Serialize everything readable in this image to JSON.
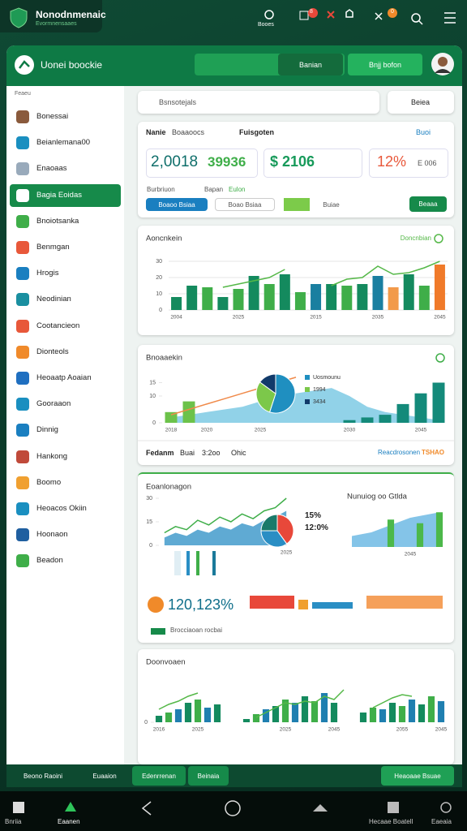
{
  "top_bar": {
    "title": "Nonodnmenaic",
    "subtitle": "Evormnensaaes",
    "icon_label": "Booes",
    "badge": "8",
    "badge_2": "0"
  },
  "toolbar": {
    "title": "Uonei boockie",
    "button_1": "Banian",
    "button_2": "Bnjj bofon"
  },
  "sidebar": {
    "heading": "Feaeu",
    "active": 3,
    "items": [
      "Bonessai",
      "Beianlemana00",
      "Enaoaas",
      "Bagia Eoidas",
      "Bnoiotsanka",
      "Benmgan",
      "Hrogis",
      "Neodinian",
      "Cootancieon",
      "Dionteols",
      "Heoaatp Aoaian",
      "Gooraaon",
      "Dinnig",
      "Hankong",
      "Boomo",
      "Heoacos Okiin",
      "Hoonaon",
      "Beadon"
    ]
  },
  "search": {
    "placeholder": "Bsnsotejals",
    "dropdown": "Beiea"
  },
  "summary": {
    "tabs": [
      "Nanie",
      "Boaaoocs",
      "Fuisgoten"
    ],
    "link": "Buoi",
    "stats": [
      "2,0018",
      "39936",
      "$ 2106",
      "12%",
      "E 006"
    ],
    "filters": [
      "Burbriuon",
      "Bapan",
      "Eulon"
    ],
    "buttons": [
      "Boaoo Bsiaa",
      "Boao Bsiaa",
      "Buiae",
      "Beaaa"
    ]
  },
  "chart_data": [
    {
      "type": "bar",
      "title": "Aoncnkein",
      "ylim": [
        0,
        35
      ],
      "yticks": [
        0,
        10,
        20,
        30
      ],
      "grid": true,
      "categories": [
        "2004",
        null,
        null,
        null,
        "2025",
        null,
        null,
        null,
        null,
        "2015",
        null,
        null,
        null,
        "2035",
        null,
        null,
        null,
        "2045"
      ],
      "series": [
        {
          "type": "bar",
          "colors": [
            "#148a5e",
            "#148a5e",
            "#3fae49",
            "#148a5e",
            "#3fae49",
            "#148a5e",
            "#3fae49",
            "#148a5e",
            "#3fae49",
            "#1a7fa0",
            "#148a5e",
            "#3fae49",
            "#148a5e",
            "#1a7fa0",
            "#f29a4a",
            "#148a5e",
            "#3fae49",
            "#f07a2a"
          ],
          "values": [
            8,
            15,
            14,
            8,
            13,
            21,
            16,
            22,
            11,
            16,
            16,
            15,
            16,
            21,
            14,
            22,
            15,
            28
          ]
        },
        {
          "type": "line",
          "name": "Doncnbian",
          "color": "#55b848",
          "values": [
            null,
            null,
            null,
            14,
            16,
            18,
            20,
            25,
            null,
            null,
            15,
            19,
            20,
            27,
            22,
            23,
            26,
            30
          ]
        }
      ]
    },
    {
      "type": "bar",
      "title": "Bnoaaekin",
      "ylim": [
        0,
        20
      ],
      "yticks": [
        0,
        10,
        15
      ],
      "grid": false,
      "categories": [
        "2018",
        null,
        "2020",
        null,
        null,
        "2025",
        null,
        null,
        null,
        null,
        "2030",
        null,
        null,
        null,
        "2045",
        null
      ],
      "series": [
        {
          "type": "area",
          "color": "#6cc3e0",
          "values": [
            2,
            3,
            4,
            5,
            6,
            8,
            9,
            11,
            12,
            13,
            10,
            6,
            4,
            3,
            2,
            1
          ]
        },
        {
          "type": "bar",
          "colors": [
            "#6cc24a",
            "#6cc24a",
            "#148a7a",
            "#148a7a",
            "#148a7a",
            "#148a7a",
            "#148a7a",
            "#148a7a",
            "#148a7a",
            "#148a7a",
            "#148a7a",
            "#148a7a",
            "#148a7a",
            "#148a7a",
            "#148a7a",
            "#148a7a"
          ],
          "values": [
            4,
            8,
            null,
            null,
            null,
            null,
            null,
            null,
            null,
            null,
            1,
            2,
            3,
            7,
            11,
            15
          ]
        },
        {
          "type": "line",
          "color": "#f08a4a",
          "values": [
            3,
            5,
            7,
            9,
            11,
            13,
            15,
            17,
            null,
            null,
            null,
            null,
            null,
            null,
            null,
            null
          ]
        }
      ]
    },
    {
      "type": "pie",
      "values": [
        55,
        30,
        15
      ],
      "colors": [
        "#1f8fc0",
        "#7cc84a",
        "#113a6a"
      ],
      "labels": [
        "Uosmounu",
        "1994",
        "3434"
      ]
    },
    {
      "type": "bar",
      "title": "Eoanlonagon",
      "ylim": [
        0,
        30
      ],
      "yticks": [
        0,
        15,
        30
      ],
      "grid": false,
      "categories": [
        null,
        null,
        null,
        null,
        null,
        null,
        null,
        null,
        null,
        null,
        null,
        "2025"
      ],
      "series": [
        {
          "type": "area",
          "color": "#2a8ec4",
          "values": [
            5,
            8,
            6,
            10,
            8,
            12,
            10,
            14,
            12,
            16,
            18,
            22
          ]
        },
        {
          "type": "line",
          "color": "#3fae49",
          "values": [
            8,
            12,
            10,
            16,
            13,
            18,
            15,
            20,
            17,
            22,
            24,
            30
          ]
        }
      ]
    },
    {
      "type": "pie",
      "values": [
        40,
        35,
        25
      ],
      "colors": [
        "#e8483a",
        "#2a8ec4",
        "#1a7a6a"
      ]
    },
    {
      "type": "bar",
      "title": "Nunuiog oo Gtlda",
      "ylim": [
        0,
        20
      ],
      "grid": false,
      "categories": [
        null,
        null,
        null,
        null,
        null,
        null,
        "2045",
        null,
        null,
        null
      ],
      "series": [
        {
          "type": "area",
          "color": "#5bb0e0",
          "values": [
            6,
            7,
            8,
            10,
            12,
            14,
            16,
            17,
            18,
            19
          ]
        },
        {
          "type": "bar",
          "colors": [
            "#4cb84a"
          ],
          "values": [
            null,
            null,
            null,
            null,
            15,
            null,
            null,
            13,
            null,
            19
          ]
        }
      ]
    },
    {
      "type": "bar",
      "title": "Doonvoaen",
      "ylim": [
        0,
        30
      ],
      "yticks": [
        0
      ],
      "grid": false,
      "categories": [
        "2016",
        null,
        null,
        null,
        "2025",
        null,
        null,
        null,
        null,
        null,
        null,
        null,
        null,
        "2025",
        null,
        null,
        null,
        null,
        "2045",
        null,
        null,
        null,
        null,
        null,
        null,
        "2055",
        null,
        null,
        null,
        "2045"
      ],
      "series": [
        {
          "type": "bar",
          "colors": [
            "#148a5e",
            "#3fae49",
            "#1f7fb0"
          ],
          "values": [
            4,
            6,
            8,
            12,
            14,
            9,
            11,
            null,
            null,
            2,
            5,
            8,
            10,
            14,
            12,
            16,
            13,
            18,
            12,
            null,
            null,
            6,
            9,
            8,
            12,
            10,
            14,
            11,
            16,
            13
          ]
        },
        {
          "type": "line",
          "color": "#55b848",
          "values": [
            8,
            11,
            13,
            16,
            18,
            null,
            null,
            null,
            null,
            null,
            3,
            6,
            9,
            12,
            11,
            13,
            12,
            16,
            14,
            20,
            null,
            null,
            9,
            12,
            15,
            17,
            16,
            null,
            null,
            null
          ]
        }
      ]
    }
  ],
  "panel_2_footer": {
    "items": [
      "Fedanm",
      "Buai",
      "3:2oo",
      "Ohic"
    ],
    "right": "Reacdrosonen",
    "right_2": "TSHAO"
  },
  "panel_3": {
    "kpis": [
      "15%",
      "12:0%"
    ],
    "stat": "120,123%",
    "stat_label": "Brocciaoan rocbai"
  },
  "bottom_bar": {
    "items": [
      "Beono Raoini",
      "Euaaion",
      "Edenrrenan",
      "Beinaia"
    ],
    "right": "Heaoaae Bsuae"
  },
  "nav": {
    "items": [
      "Bnriia",
      "Eaanen",
      "Hecaae Boatell",
      "Eaeaia"
    ]
  }
}
